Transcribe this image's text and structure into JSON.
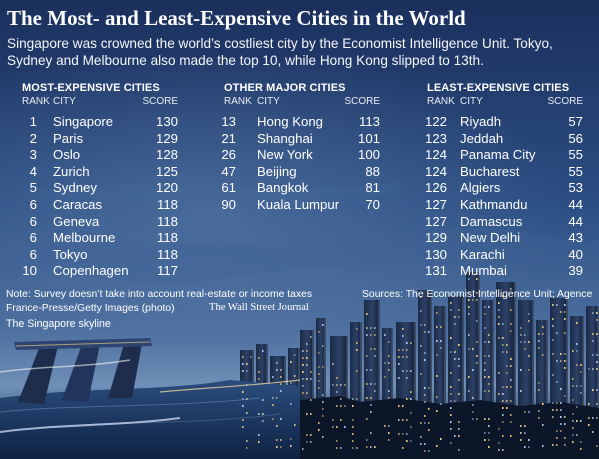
{
  "header": {
    "title": "The Most- and Least-Expensive Cities in the World",
    "subtitle": "Singapore was crowned the world’s costliest city by the Economist Intelligence Unit. Tokyo, Sydney and Melbourne also made the top 10, while Hong Kong slipped to 13th."
  },
  "colors": {
    "sky_top": "#1b2f5c",
    "sky_mid": "#2f5489",
    "horizon": "#6f8fb6",
    "city_dark": "#0e1a30",
    "water": "#23406b",
    "light_warm": "#ffd98a",
    "light_cool": "#bcd8ff"
  },
  "chart_data": {
    "type": "table",
    "columns": [
      "RANK",
      "CITY",
      "SCORE"
    ],
    "tables": [
      {
        "heading": "MOST-EXPENSIVE CITIES",
        "rows": [
          {
            "rank": "1",
            "city": "Singapore",
            "score": "130"
          },
          {
            "rank": "2",
            "city": "Paris",
            "score": "129"
          },
          {
            "rank": "3",
            "city": "Oslo",
            "score": "128"
          },
          {
            "rank": "4",
            "city": "Zurich",
            "score": "125"
          },
          {
            "rank": "5",
            "city": "Sydney",
            "score": "120"
          },
          {
            "rank": "6",
            "city": "Caracas",
            "score": "118"
          },
          {
            "rank": "6",
            "city": "Geneva",
            "score": "118"
          },
          {
            "rank": "6",
            "city": "Melbourne",
            "score": "118"
          },
          {
            "rank": "6",
            "city": "Tokyo",
            "score": "118"
          },
          {
            "rank": "10",
            "city": "Copenhagen",
            "score": "117"
          }
        ]
      },
      {
        "heading": "OTHER MAJOR CITIES",
        "rows": [
          {
            "rank": "13",
            "city": "Hong Kong",
            "score": "113"
          },
          {
            "rank": "21",
            "city": "Shanghai",
            "score": "101"
          },
          {
            "rank": "26",
            "city": "New York",
            "score": "100"
          },
          {
            "rank": "47",
            "city": "Beijing",
            "score": "88"
          },
          {
            "rank": "61",
            "city": "Bangkok",
            "score": "81"
          },
          {
            "rank": "90",
            "city": "Kuala Lumpur",
            "score": "70"
          }
        ]
      },
      {
        "heading": "LEAST-EXPENSIVE CITIES",
        "rows": [
          {
            "rank": "122",
            "city": "Riyadh",
            "score": "57"
          },
          {
            "rank": "123",
            "city": "Jeddah",
            "score": "56"
          },
          {
            "rank": "124",
            "city": "Panama City",
            "score": "55"
          },
          {
            "rank": "124",
            "city": "Bucharest",
            "score": "55"
          },
          {
            "rank": "126",
            "city": "Algiers",
            "score": "53"
          },
          {
            "rank": "127",
            "city": "Kathmandu",
            "score": "44"
          },
          {
            "rank": "127",
            "city": "Damascus",
            "score": "44"
          },
          {
            "rank": "129",
            "city": "New Delhi",
            "score": "43"
          },
          {
            "rank": "130",
            "city": "Karachi",
            "score": "40"
          },
          {
            "rank": "131",
            "city": "Mumbai",
            "score": "39"
          }
        ]
      }
    ]
  },
  "footer": {
    "note_line1": "Note: Survey doesn’t take into account real-estate or income taxes",
    "note_line2": "France-Presse/Getty Images (photo)",
    "publisher": "The Wall Street Journal",
    "sources": "Sources: The Economist Intelligence Unit; Agence",
    "caption": "The Singapore skyline"
  }
}
